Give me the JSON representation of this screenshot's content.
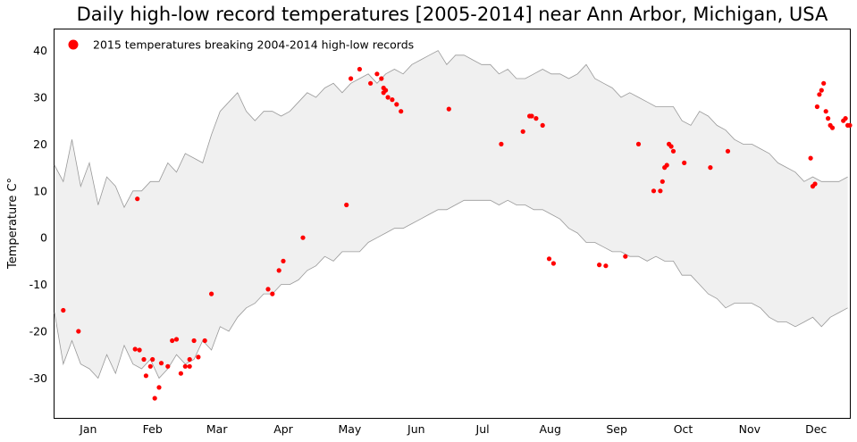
{
  "chart_data": {
    "type": "scatter",
    "title": "Daily high-low record temperatures [2005-2014] near Ann Arbor, Michigan, USA",
    "xlabel": "",
    "ylabel": "Temperature C°",
    "ylim": [
      -38.5,
      44.5
    ],
    "xlim": [
      1,
      366
    ],
    "month_labels": [
      "Jan",
      "Feb",
      "Mar",
      "Apr",
      "May",
      "Jun",
      "Jul",
      "Aug",
      "Sep",
      "Oct",
      "Nov",
      "Dec"
    ],
    "yticks": [
      -30,
      -20,
      -10,
      0,
      10,
      20,
      30,
      40
    ],
    "grid": false,
    "legend_position": "top-left",
    "band": {
      "high_x": [
        1,
        5,
        9,
        13,
        17,
        21,
        25,
        29,
        33,
        37,
        41,
        45,
        49,
        53,
        57,
        61,
        65,
        69,
        73,
        77,
        81,
        85,
        89,
        93,
        97,
        101,
        105,
        109,
        113,
        117,
        121,
        125,
        129,
        133,
        137,
        141,
        145,
        149,
        153,
        157,
        161,
        165,
        169,
        173,
        177,
        181,
        185,
        189,
        193,
        197,
        201,
        205,
        209,
        213,
        217,
        221,
        225,
        229,
        233,
        237,
        241,
        245,
        249,
        253,
        257,
        261,
        265,
        269,
        273,
        277,
        281,
        285,
        289,
        293,
        297,
        301,
        305,
        309,
        313,
        317,
        321,
        325,
        329,
        333,
        337,
        341,
        345,
        349,
        353,
        357,
        361,
        365
      ],
      "high_y": [
        15.5,
        12,
        21,
        11,
        16,
        7,
        13,
        11,
        6.5,
        10,
        10,
        12,
        12,
        16,
        14,
        18,
        17,
        16,
        22,
        27,
        29,
        31,
        27,
        25,
        27,
        27,
        26,
        27,
        29,
        31,
        30,
        32,
        33,
        31,
        33,
        34,
        35,
        33,
        35,
        36,
        35,
        37,
        38,
        39,
        40,
        37,
        39,
        39,
        38,
        37,
        37,
        35,
        36,
        34,
        34,
        35,
        36,
        35,
        35,
        34,
        35,
        37,
        34,
        33,
        32,
        30,
        31,
        30,
        29,
        28,
        28,
        28,
        25,
        24,
        27,
        26,
        24,
        23,
        21,
        20,
        20,
        19,
        18,
        16,
        15,
        14,
        12,
        13,
        12,
        12,
        12,
        13
      ],
      "low_x": [
        1,
        5,
        9,
        13,
        17,
        21,
        25,
        29,
        33,
        37,
        41,
        45,
        49,
        53,
        57,
        61,
        65,
        69,
        73,
        77,
        81,
        85,
        89,
        93,
        97,
        101,
        105,
        109,
        113,
        117,
        121,
        125,
        129,
        133,
        137,
        141,
        145,
        149,
        153,
        157,
        161,
        165,
        169,
        173,
        177,
        181,
        185,
        189,
        193,
        197,
        201,
        205,
        209,
        213,
        217,
        221,
        225,
        229,
        233,
        237,
        241,
        245,
        249,
        253,
        257,
        261,
        265,
        269,
        273,
        277,
        281,
        285,
        289,
        293,
        297,
        301,
        305,
        309,
        313,
        317,
        321,
        325,
        329,
        333,
        337,
        341,
        345,
        349,
        353,
        357,
        361,
        365
      ],
      "low_y": [
        -16,
        -27,
        -22,
        -27,
        -28,
        -30,
        -25,
        -29,
        -23,
        -27,
        -28,
        -26,
        -30,
        -28,
        -25,
        -27,
        -26,
        -22,
        -24,
        -19,
        -20,
        -17,
        -15,
        -14,
        -12,
        -12,
        -10,
        -10,
        -9,
        -7,
        -6,
        -4,
        -5,
        -3,
        -3,
        -3,
        -1,
        0,
        1,
        2,
        2,
        3,
        4,
        5,
        6,
        6,
        7,
        8,
        8,
        8,
        8,
        7,
        8,
        7,
        7,
        6,
        6,
        5,
        4,
        2,
        1,
        -1,
        -1,
        -2,
        -3,
        -3,
        -4,
        -4,
        -5,
        -4,
        -5,
        -5,
        -8,
        -8,
        -10,
        -12,
        -13,
        -15,
        -14,
        -14,
        -14,
        -15,
        -17,
        -18,
        -18,
        -19,
        -18,
        -17,
        -19,
        -17,
        -16,
        -15
      ]
    },
    "series": [
      {
        "name": "2015 temperatures breaking 2004-2014 high-low records",
        "color": "#ff0000",
        "x": [
          5,
          12,
          38,
          39,
          40,
          42,
          43,
          45,
          46,
          47,
          49,
          50,
          53,
          55,
          57,
          59,
          61,
          63,
          63,
          65,
          67,
          70,
          73,
          99,
          101,
          104,
          106,
          115,
          135,
          137,
          141,
          146,
          149,
          151,
          152,
          153,
          152,
          154,
          156,
          158,
          160,
          182,
          206,
          216,
          219,
          220,
          222,
          225,
          228,
          230,
          251,
          254,
          263,
          269,
          276,
          279,
          280,
          281,
          282,
          283,
          284,
          285,
          290,
          302,
          310,
          348,
          349,
          350,
          351,
          352,
          353,
          354,
          355,
          356,
          357,
          358,
          363,
          364,
          365,
          366
        ],
        "y": [
          -15.5,
          -20,
          -23.8,
          8.3,
          -24,
          -26,
          -29.5,
          -27.5,
          -26,
          -34.3,
          -32,
          -26.8,
          -27.5,
          -22,
          -21.7,
          -29,
          -27.5,
          -26,
          -27.5,
          -22,
          -25.5,
          -22,
          -12,
          -11,
          -12,
          -7,
          -5,
          0,
          7,
          34,
          36,
          33,
          35,
          34,
          31,
          31.5,
          32,
          30,
          29.5,
          28.5,
          27,
          27.5,
          20,
          22.7,
          26,
          26,
          25.5,
          24,
          -4.5,
          -5.5,
          -5.8,
          -6,
          -4,
          20,
          10,
          10,
          12,
          15,
          15.5,
          20,
          19.5,
          18.5,
          16,
          15,
          18.5,
          17,
          11,
          11.5,
          28,
          30.6,
          31.5,
          33,
          27,
          25.5,
          24,
          23.5,
          25,
          25.5,
          24,
          24
        ],
        "values_note": ""
      }
    ]
  }
}
